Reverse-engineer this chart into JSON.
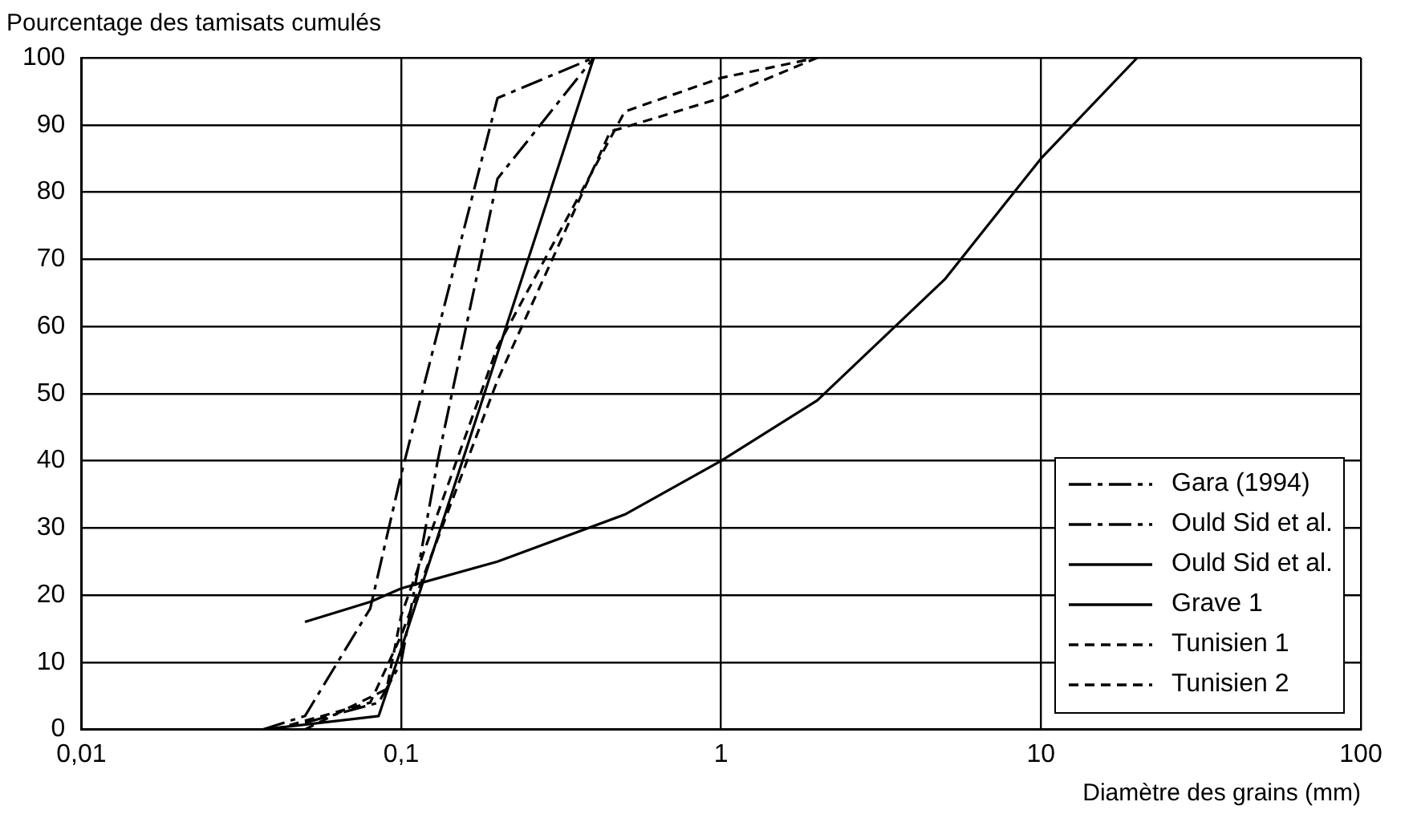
{
  "chart_data": {
    "type": "line",
    "ylabel": "Pourcentage des tamisats cumulés",
    "xlabel": "Diamètre des grains (mm)",
    "log": "x",
    "xlim": [
      0.01,
      100
    ],
    "xticks": [
      {
        "value": 0.01,
        "label": "0,01"
      },
      {
        "value": 0.1,
        "label": "0,1"
      },
      1,
      10,
      100
    ],
    "ylim": [
      0,
      100
    ],
    "yticks": [
      0,
      10,
      20,
      30,
      40,
      50,
      60,
      70,
      80,
      90,
      100
    ],
    "grid": true,
    "legend": "bottom right",
    "marker": "none",
    "series": [
      {
        "name": "Gara (1994)",
        "color": "#000000",
        "line_style": "dashdot",
        "x": [
          0.037,
          0.05,
          0.08,
          0.1,
          0.2,
          0.4
        ],
        "values": [
          0,
          2,
          18,
          38,
          94,
          100
        ]
      },
      {
        "name": "Ould Sid et al.",
        "color": "#000000",
        "line_style": "dashdot",
        "x": [
          0.05,
          0.085,
          0.1,
          0.13,
          0.2,
          0.4
        ],
        "values": [
          1,
          4,
          10,
          40,
          82,
          100
        ]
      },
      {
        "name": "Ould Sid et al.",
        "color": "#000000",
        "line_style": "solid",
        "x": [
          0.037,
          0.085,
          0.1,
          0.4
        ],
        "values": [
          0,
          2,
          12,
          100
        ]
      },
      {
        "name": "Grave 1",
        "color": "#000000",
        "line_style": "solid",
        "x": [
          0.05,
          0.08,
          0.1,
          0.2,
          0.5,
          1,
          2,
          5,
          10,
          20
        ],
        "values": [
          16,
          19,
          21,
          25,
          32,
          40,
          49,
          67,
          85,
          100
        ]
      },
      {
        "name": "Tunisien 1",
        "color": "#000000",
        "line_style": "dashed",
        "x": [
          0.04,
          0.08,
          0.1,
          0.2,
          0.45,
          1,
          2
        ],
        "values": [
          0,
          4,
          14,
          52,
          89,
          94,
          100
        ]
      },
      {
        "name": "Tunisien 2",
        "color": "#000000",
        "line_style": "dashed",
        "x": [
          0.05,
          0.09,
          0.1,
          0.2,
          0.5,
          1,
          2
        ],
        "values": [
          0,
          6,
          17,
          57,
          92,
          97,
          100
        ]
      }
    ]
  }
}
